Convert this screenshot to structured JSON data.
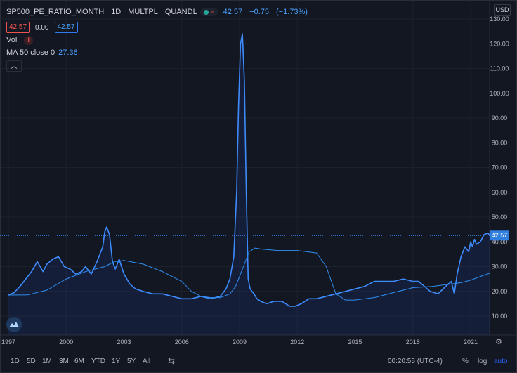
{
  "header": {
    "symbol": "SP500_PE_RATIO_MONTH",
    "interval": "1D",
    "source": "MULTPL",
    "exchange": "QUANDL",
    "last_price": "42.57",
    "change": "−0.75",
    "change_pct": "(−1.73%)"
  },
  "price_row": {
    "bid": "42.57",
    "spread": "0.00",
    "ask": "42.57"
  },
  "vol_label": "Vol",
  "ma_row": {
    "label": "MA 50 close 0",
    "value": "27.36"
  },
  "currency": "USD",
  "price_label": "42.57",
  "bottom_bar": {
    "ranges": [
      "1D",
      "5D",
      "1M",
      "3M",
      "6M",
      "YTD",
      "1Y",
      "5Y",
      "All"
    ],
    "time": "00:20:55 (UTC-4)",
    "percent": "%",
    "log": "log",
    "auto": "auto"
  },
  "colors": {
    "background": "#131722",
    "line": "#3d8bfd",
    "ma": "#2f8ef0",
    "label_bg": "#2f7ee0",
    "warning": "#ef5350"
  },
  "chart_data": {
    "type": "line",
    "x_ticks": [
      "1997",
      "2000",
      "2003",
      "2006",
      "2009",
      "2012",
      "2015",
      "2018",
      "2021"
    ],
    "y_ticks": [
      "10.00",
      "20.00",
      "30.00",
      "40.00",
      "50.00",
      "60.00",
      "70.00",
      "80.00",
      "90.00",
      "100.00",
      "110.00",
      "120.00",
      "130.00"
    ],
    "ylim": [
      0,
      133
    ],
    "xlim": [
      1997.0,
      2022.1
    ],
    "series": [
      {
        "name": "SP500_PE_RATIO_MONTH",
        "x": [
          1997.0,
          1997.3,
          1997.6,
          1997.9,
          1998.2,
          1998.5,
          1998.8,
          1999.0,
          1999.3,
          1999.6,
          1999.9,
          2000.2,
          2000.5,
          2000.8,
          2001.0,
          2001.3,
          2001.6,
          2001.9,
          2002.0,
          2002.1,
          2002.25,
          2002.4,
          2002.55,
          2002.75,
          2003.0,
          2003.3,
          2003.6,
          2004.0,
          2004.5,
          2005.0,
          2005.5,
          2006.0,
          2006.5,
          2007.0,
          2007.5,
          2008.0,
          2008.3,
          2008.5,
          2008.7,
          2008.85,
          2008.95,
          2009.05,
          2009.15,
          2009.25,
          2009.35,
          2009.45,
          2009.55,
          2009.65,
          2009.75,
          2009.9,
          2010.1,
          2010.4,
          2010.8,
          2011.2,
          2011.6,
          2011.9,
          2012.2,
          2012.6,
          2013.0,
          2013.5,
          2014.0,
          2014.5,
          2015.0,
          2015.5,
          2016.0,
          2016.5,
          2017.0,
          2017.5,
          2018.0,
          2018.3,
          2018.6,
          2018.9,
          2019.3,
          2019.7,
          2020.0,
          2020.15,
          2020.3,
          2020.5,
          2020.7,
          2020.9,
          2021.0,
          2021.1,
          2021.2,
          2021.3,
          2021.5,
          2021.7,
          2021.9,
          2022.0
        ],
        "y": [
          18.5,
          19.5,
          22,
          25,
          28,
          32,
          28,
          31,
          33,
          34,
          30,
          29,
          27,
          28,
          30,
          27,
          32,
          38,
          44,
          46,
          43,
          32,
          29,
          33,
          27,
          23,
          21,
          20,
          19,
          19,
          18,
          17,
          17,
          18,
          17,
          18,
          21,
          25,
          34,
          60,
          95,
          120,
          124,
          105,
          60,
          25,
          21,
          20,
          19,
          17,
          16,
          15,
          16,
          16,
          14,
          14,
          15,
          17,
          17,
          18,
          19,
          20,
          21,
          22,
          24,
          24,
          24,
          25,
          24,
          24,
          22,
          20,
          19,
          22,
          24,
          19,
          27,
          34,
          38,
          36,
          40,
          38,
          41,
          39,
          40,
          43,
          43.5,
          42.57
        ]
      },
      {
        "name": "MA 50 close 0",
        "x": [
          1997.0,
          1998.0,
          1999.0,
          2000.0,
          2001.0,
          2002.0,
          2002.5,
          2003.0,
          2004.0,
          2005.0,
          2006.0,
          2006.5,
          2007.0,
          2007.5,
          2008.0,
          2008.5,
          2008.8,
          2009.2,
          2009.5,
          2009.8,
          2010.2,
          2011.0,
          2012.0,
          2013.0,
          2013.5,
          2014.0,
          2014.5,
          2015.0,
          2016.0,
          2017.0,
          2018.0,
          2019.0,
          2020.0,
          2020.5,
          2021.0,
          2021.5,
          2022.0
        ],
        "y": [
          18.5,
          18.6,
          20.5,
          25,
          28,
          30,
          32,
          32.5,
          31,
          28,
          24,
          20,
          18,
          17.5,
          17.5,
          19,
          22,
          30,
          36,
          37.5,
          37,
          36.5,
          36.5,
          35.5,
          30,
          19,
          16.5,
          16.5,
          17.5,
          19.5,
          21.5,
          22,
          23,
          23.5,
          24.5,
          26,
          27.36
        ]
      }
    ]
  }
}
